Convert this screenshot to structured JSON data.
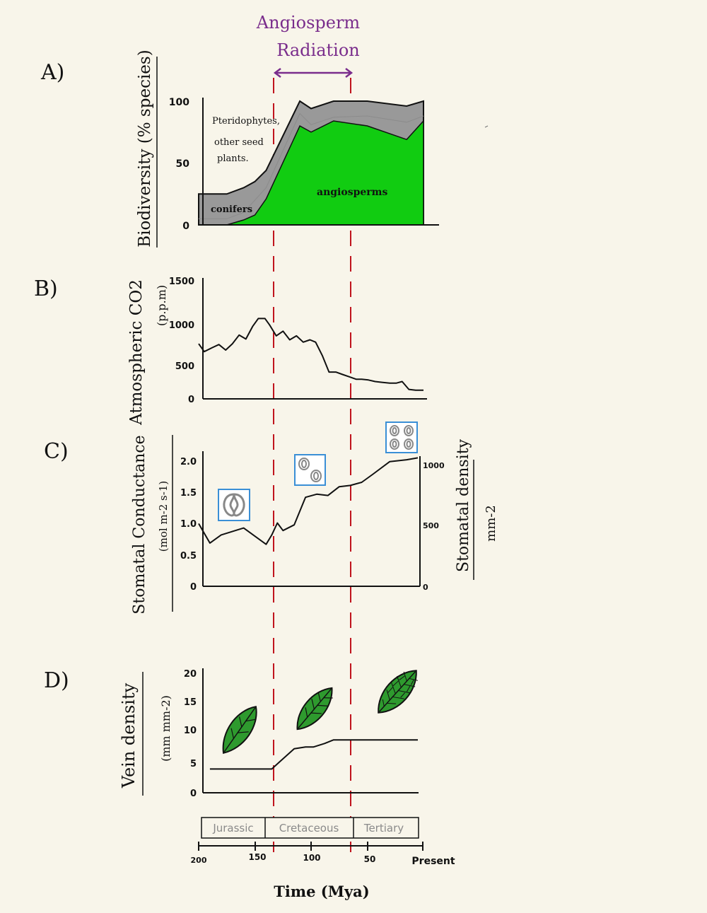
{
  "colors": {
    "background": "#f8f5ea",
    "angiosperm_green": "#11cc11",
    "other_gray": "#999999",
    "radiation_purple": "#7a2d8c",
    "marker_red": "#c0141e",
    "stomata_box": "#3a8fd6",
    "leaf_green": "#2e9a2e"
  },
  "annotation": {
    "radiation_line1": "Angiosperm",
    "radiation_line2": "Radiation",
    "time_axis_label": "Time (Mya)"
  },
  "chart_data": [
    {
      "panel": "A)",
      "type": "area",
      "ylabel": "Biodiversity (% species)",
      "ylim": [
        0,
        100
      ],
      "yticks": [
        "0",
        "50",
        "100"
      ],
      "x": [
        200,
        175,
        160,
        150,
        140,
        110,
        100,
        80,
        50,
        15,
        0
      ],
      "series": [
        {
          "name": "angiosperms",
          "values": [
            0,
            0,
            4,
            8,
            21,
            80,
            75,
            84,
            80,
            69,
            84
          ]
        },
        {
          "name": "Pteridophytes, other seed plants.",
          "values": [
            5,
            5,
            10,
            20,
            30,
            90,
            81,
            87,
            88,
            83,
            88
          ]
        },
        {
          "name": "conifers",
          "values": [
            25,
            25,
            30,
            35,
            44,
            100,
            94,
            100,
            100,
            96,
            100
          ]
        }
      ],
      "labels": {
        "top_group": "Pteridophytes,",
        "top_group2": "other seed",
        "top_group3": "plants.",
        "conifers": "conifers",
        "angiosperms": "angiosperms"
      }
    },
    {
      "panel": "B)",
      "type": "line",
      "ylabel": "Atmospheric CO2",
      "ylabel_unit": "(p.p.m)",
      "ylim": [
        0,
        1500
      ],
      "yticks": [
        "0",
        "500",
        "1000",
        "1500"
      ],
      "x": [
        200,
        195,
        188,
        182,
        176,
        170,
        164,
        158,
        152,
        147,
        141,
        137,
        131,
        125,
        119,
        113,
        107,
        101,
        96,
        90,
        84,
        78,
        72,
        66,
        60,
        55,
        49,
        43,
        37,
        30,
        24,
        19,
        13,
        7,
        0
      ],
      "values": [
        700,
        600,
        650,
        690,
        620,
        700,
        810,
        760,
        920,
        1020,
        1020,
        940,
        800,
        860,
        750,
        800,
        720,
        750,
        720,
        550,
        340,
        340,
        310,
        280,
        250,
        250,
        240,
        220,
        210,
        200,
        200,
        220,
        120,
        110,
        110
      ]
    },
    {
      "panel": "C)",
      "type": "line",
      "ylabel": "Stomatal Conductance",
      "ylabel_unit": "(mol m-2 s-1)",
      "ylabel_right": "Stomatal density",
      "ylabel_right_unit": "mm-2",
      "ylim": [
        0,
        2.1
      ],
      "yticks": [
        "0",
        "0.5",
        "1.0",
        "1.5",
        "2.0"
      ],
      "yticks_right": [
        "0",
        "500",
        "1000"
      ],
      "x": [
        200,
        190,
        180,
        160,
        140,
        135,
        130,
        125,
        115,
        105,
        95,
        85,
        75,
        65,
        55,
        45,
        30,
        15,
        5
      ],
      "values": [
        1.0,
        0.69,
        0.82,
        0.93,
        0.67,
        0.82,
        1.01,
        0.89,
        0.98,
        1.42,
        1.47,
        1.45,
        1.59,
        1.61,
        1.66,
        1.79,
        1.99,
        2.02,
        2.05
      ]
    },
    {
      "panel": "D)",
      "type": "line",
      "ylabel": "Vein density",
      "ylabel_unit": "(mm mm-2)",
      "ylim": [
        0,
        20
      ],
      "yticks": [
        "0",
        "5",
        "10",
        "15",
        "20"
      ],
      "x": [
        190,
        135,
        128,
        115,
        105,
        98,
        88,
        80,
        70,
        5
      ],
      "values": [
        4,
        4,
        5.2,
        7.4,
        7.7,
        7.7,
        8.3,
        8.9,
        8.9,
        8.9
      ],
      "periods": [
        "Jurassic",
        "Cretaceous",
        "Tertiary"
      ],
      "xticks": [
        "200",
        "150",
        "100",
        "50",
        "Present"
      ]
    }
  ]
}
